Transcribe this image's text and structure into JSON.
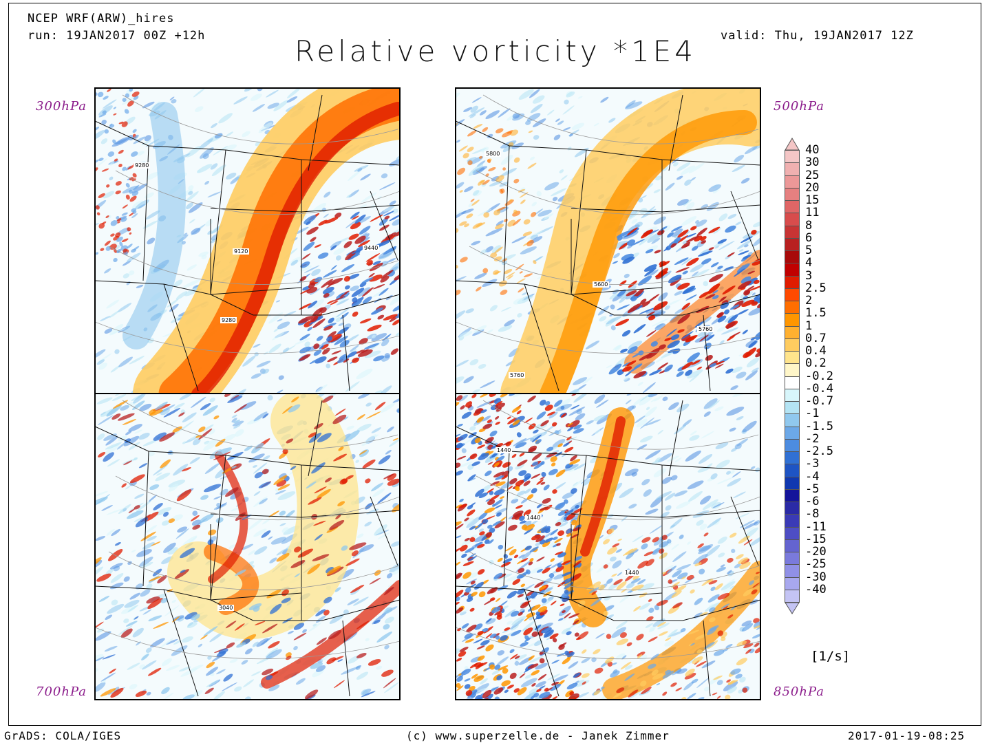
{
  "header": {
    "model": "NCEP WRF(ARW)_hires",
    "run": "run: 19JAN2017 00Z +12h",
    "valid": "valid: Thu, 19JAN2017 12Z",
    "title": "Relative vorticity *1E4"
  },
  "panels": [
    {
      "level": "300hPa",
      "contours": [
        "9280",
        "9120",
        "9440",
        "9280"
      ]
    },
    {
      "level": "500hPa",
      "contours": [
        "5800",
        "5600",
        "5760",
        "5760"
      ]
    },
    {
      "level": "700hPa",
      "contours": [
        "3040"
      ]
    },
    {
      "level": "850hPa",
      "contours": [
        "1440",
        "1440",
        "1440"
      ]
    }
  ],
  "colorbar": {
    "unit": "[1/s]",
    "levels": [
      "40",
      "30",
      "25",
      "20",
      "15",
      "11",
      "8",
      "6",
      "5",
      "4",
      "3",
      "2.5",
      "2",
      "1.5",
      "1",
      "0.7",
      "0.4",
      "0.2",
      "-0.2",
      "-0.4",
      "-0.7",
      "-1",
      "-1.5",
      "-2",
      "-2.5",
      "-3",
      "-4",
      "-5",
      "-6",
      "-8",
      "-11",
      "-15",
      "-20",
      "-25",
      "-30",
      "-40"
    ],
    "colors": [
      "#f4c6c6",
      "#f0b0b0",
      "#ec9898",
      "#e68080",
      "#e06666",
      "#d84c4c",
      "#c83434",
      "#b82020",
      "#a80a0a",
      "#c00000",
      "#e01c00",
      "#ff4a00",
      "#ff6e00",
      "#ff9600",
      "#ffb030",
      "#ffcc60",
      "#ffe48c",
      "#fff6c8",
      "#ffffff",
      "#d8f6fb",
      "#b4e4f4",
      "#90c8ee",
      "#6ca8e8",
      "#4c8ce0",
      "#3070d4",
      "#1e54c4",
      "#1038b0",
      "#14149a",
      "#2a2aa6",
      "#3a3ab6",
      "#4e4ec4",
      "#6464d0",
      "#7a7adc",
      "#9090e6",
      "#a8a8ee",
      "#c4c4f4"
    ]
  },
  "footer": {
    "left": "GrADS: COLA/IGES",
    "center": "(c) www.superzelle.de - Janek Zimmer",
    "right": "2017-01-19-08:25"
  }
}
